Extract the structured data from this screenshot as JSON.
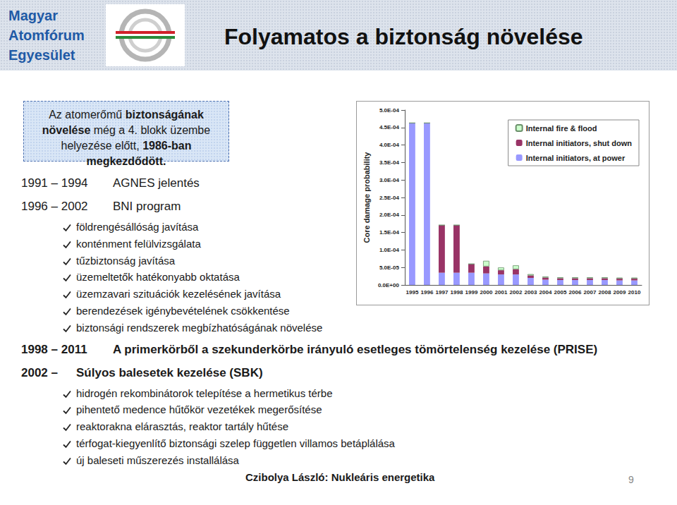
{
  "header": {
    "logo_text": [
      "Magyar",
      "Atomfórum",
      "Egyesület"
    ],
    "title": "Folyamatos a biztonság növelése"
  },
  "intro_box": {
    "runs": [
      {
        "text": "Az atomerőmű ",
        "bold": false
      },
      {
        "text": "biztonságának növelése",
        "bold": true
      },
      {
        "text": " még a 4. blokk üzembe helyezése előtt, ",
        "bold": false
      },
      {
        "text": "1986-ban megkezdődött.",
        "bold": true
      }
    ]
  },
  "timeline": [
    {
      "period": "1991 – 1994",
      "title": "AGNES jelentés",
      "bold": false,
      "checks": []
    },
    {
      "period": "1996 – 2002",
      "title": "BNI program",
      "bold": false,
      "checks": [
        "földrengésállóság javítása",
        "konténment felülvizsgálata",
        "tűzbiztonság javítása",
        "üzemeltetők hatékonyabb oktatása",
        "üzemzavari szituációk kezelésének javítása",
        "berendezések igénybevételének csökkentése",
        "biztonsági rendszerek megbízhatóságának növelése"
      ]
    },
    {
      "period": "1998 – 2011",
      "title": "A primerkörből a szekunderkörbe irányuló esetleges tömörtelenség kezelése (PRISE)",
      "bold": true,
      "checks": []
    },
    {
      "period": "2002 –",
      "title": "Súlyos balesetek kezelése (SBK)",
      "bold": true,
      "checks": [
        "hidrogén rekombinátorok telepítése a hermetikus térbe",
        "pihentető medence hűtőkör vezetékek megerősítése",
        "reaktorakna elárasztás, reaktor tartály hűtése",
        "térfogat-kiegyenlítő biztonsági szelep független villamos betáplálása",
        "új baleseti műszerezés installálása"
      ]
    }
  ],
  "footer": {
    "author": "Czibolya László: Nukleáris energetika",
    "page": 9
  },
  "chart_data": {
    "type": "bar",
    "stacked": true,
    "y_label": "Core damage probability",
    "categories": [
      "1995",
      "1996",
      "1997",
      "1998",
      "1999",
      "2000",
      "2001",
      "2002",
      "2003",
      "2004",
      "2005",
      "2006",
      "2007",
      "2008",
      "2009",
      "2010"
    ],
    "series": [
      {
        "name": "Internal fire & flood",
        "color": "#ccffcc",
        "values": [
          0,
          0,
          0,
          0,
          0,
          1.6e-05,
          8e-06,
          1.1e-05,
          4e-06,
          3e-06,
          3e-06,
          3e-06,
          3e-06,
          3e-06,
          3e-06,
          3e-06
        ]
      },
      {
        "name": "Internal initiators, shut down",
        "color": "#993366",
        "values": [
          0,
          0,
          0.000136,
          0.000136,
          2.5e-05,
          2e-05,
          1.2e-05,
          1.5e-05,
          7e-06,
          6e-06,
          5e-06,
          5e-06,
          5e-06,
          5e-06,
          5e-06,
          5e-06
        ]
      },
      {
        "name": "Internal initiators, at power",
        "color": "#9999ff",
        "values": [
          0.000463,
          0.000463,
          3.5e-05,
          3.5e-05,
          3.5e-05,
          3.3e-05,
          3e-05,
          3e-05,
          2e-05,
          1.5e-05,
          1.4e-05,
          1.4e-05,
          1.4e-05,
          1.4e-05,
          1.3e-05,
          1.3e-05
        ]
      }
    ],
    "ylim": [
      0,
      0.0005
    ],
    "yticks": [
      {
        "value": 0,
        "label": "0.0E+00"
      },
      {
        "value": 5e-05,
        "label": "5.0E-05"
      },
      {
        "value": 0.0001,
        "label": "1.0E-04"
      },
      {
        "value": 0.00015,
        "label": "1.5E-04"
      },
      {
        "value": 0.0002,
        "label": "2.0E-04"
      },
      {
        "value": 0.00025,
        "label": "2.5E-04"
      },
      {
        "value": 0.0003,
        "label": "3.0E-04"
      },
      {
        "value": 0.00035,
        "label": "3.5E-04"
      },
      {
        "value": 0.0004,
        "label": "4.0E-04"
      },
      {
        "value": 0.00045,
        "label": "4.5E-04"
      },
      {
        "value": 0.0005,
        "label": "5.0E-04"
      }
    ],
    "grid": false,
    "legend": "top-right"
  }
}
